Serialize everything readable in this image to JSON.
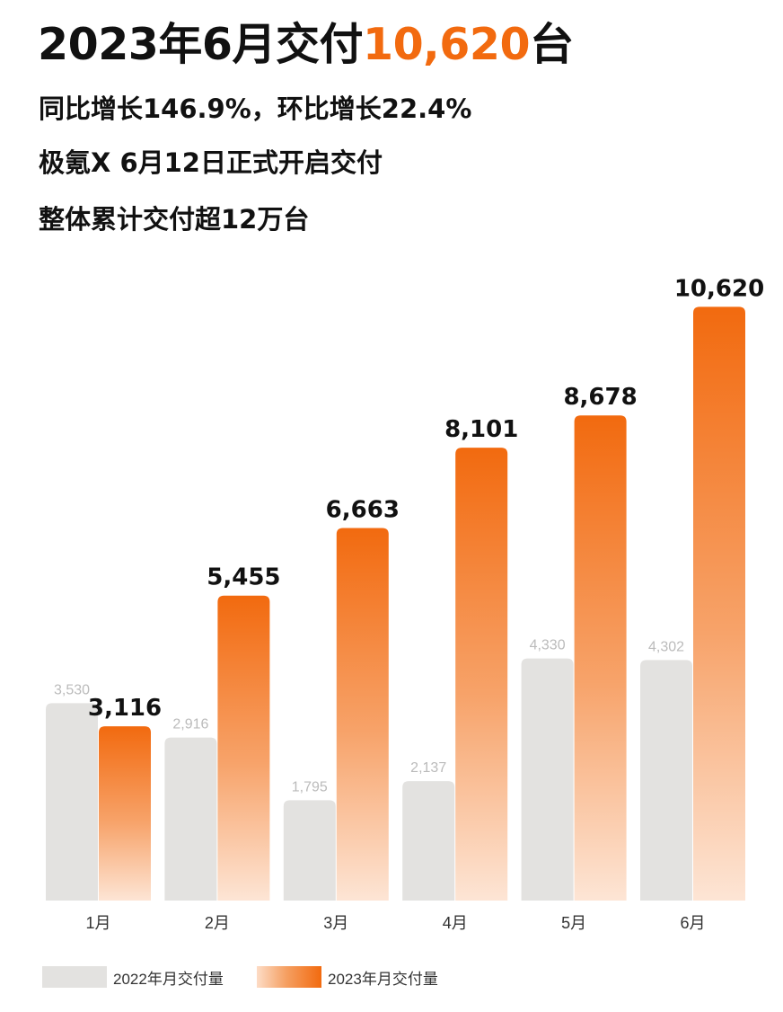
{
  "header": {
    "title_prefix": "2023年6月交付",
    "title_highlight": "10,620",
    "title_suffix": "台",
    "line1": "同比增长146.9%，环比增长22.4%",
    "line2": "极氪X 6月12日正式开启交付",
    "line3": "整体累计交付超12万台"
  },
  "colors": {
    "accent": "#f26a0f",
    "bar_2022": "#e3e2e0",
    "bar_2023_top": "#f26a0f",
    "bar_2023_bottom": "#fde5d5",
    "label_2022": "#bbbbbb",
    "label_2023": "#111111"
  },
  "chart_data": {
    "type": "bar",
    "categories": [
      "1月",
      "2月",
      "3月",
      "4月",
      "5月",
      "6月"
    ],
    "series": [
      {
        "name": "2022年月交付量",
        "values": [
          3530,
          2916,
          1795,
          2137,
          4330,
          4302
        ],
        "labels": [
          "3,530",
          "2,916",
          "1,795",
          "2,137",
          "4,330",
          "4,302"
        ]
      },
      {
        "name": "2023年月交付量",
        "values": [
          3116,
          5455,
          6663,
          8101,
          8678,
          10620
        ],
        "labels": [
          "3,116",
          "5,455",
          "6,663",
          "8,101",
          "8,678",
          "10,620"
        ]
      }
    ],
    "legend_position": "bottom-left",
    "grid": false
  }
}
